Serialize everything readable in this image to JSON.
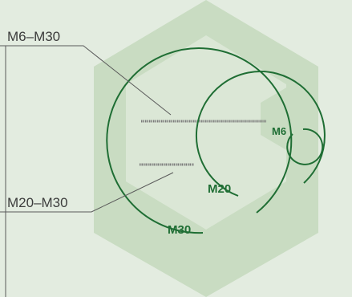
{
  "labels": {
    "range_top": "M6–M30",
    "range_bottom": "M20–M30",
    "size_small": "M6",
    "size_medium": "M20",
    "size_large": "M30"
  },
  "colors": {
    "background": "#e3ece0",
    "hex_outer": "#c9dcc2",
    "hex_inner": "#dbe7d6",
    "small_hex": "#c9dcc2",
    "arc": "#1f6e34",
    "text_size": "#1f6e34",
    "text_range": "#3c3c3c",
    "leader": "#5a5a5a",
    "gauge": "#7a7a7a"
  }
}
